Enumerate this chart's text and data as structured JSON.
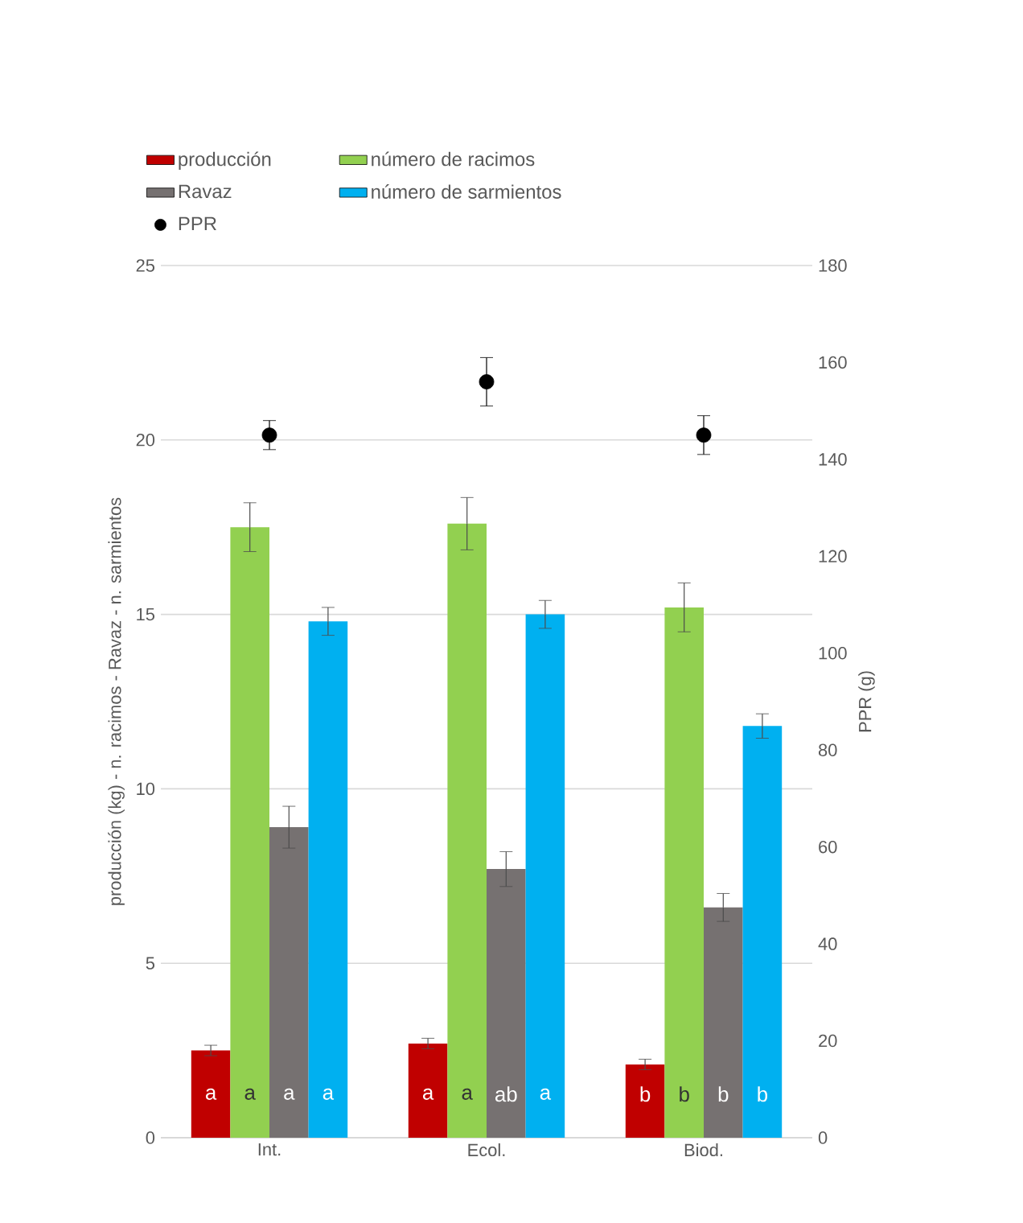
{
  "chart_data": {
    "type": "bar",
    "ylabel": "producción (kg) - n. racimos - Ravaz - n. sarmientos",
    "y2label": "PPR (g)",
    "categories": [
      "Int.",
      "Ecol.",
      "Biod."
    ],
    "series": [
      {
        "name": "producción",
        "color": "#c00000",
        "values": [
          2.5,
          2.7,
          2.1
        ],
        "errors": [
          0.15,
          0.15,
          0.15
        ],
        "value_labels": [
          "a",
          "a",
          "b"
        ]
      },
      {
        "name": "número de racimos",
        "color": "#92d050",
        "values": [
          17.5,
          17.6,
          15.2
        ],
        "errors": [
          0.7,
          0.75,
          0.7
        ],
        "value_labels": [
          "a",
          "a",
          "b"
        ]
      },
      {
        "name": "Ravaz",
        "color": "#767171",
        "values": [
          8.9,
          7.7,
          6.6
        ],
        "errors": [
          0.6,
          0.5,
          0.4
        ],
        "value_labels": [
          "a",
          "ab",
          "b"
        ]
      },
      {
        "name": "número de sarmientos",
        "color": "#00b0f0",
        "values": [
          14.8,
          15.0,
          11.8
        ],
        "errors": [
          0.4,
          0.4,
          0.35
        ],
        "value_labels": [
          "a",
          "a",
          "b"
        ]
      },
      {
        "name": "PPR",
        "type": "scatter",
        "axis": "y2",
        "color": "#000000",
        "values": [
          145,
          156,
          145
        ],
        "errors": [
          3,
          5,
          4
        ]
      }
    ],
    "ylim": [
      0,
      25
    ],
    "yticks": [
      0,
      5,
      10,
      15,
      20,
      25
    ],
    "y2lim": [
      0,
      180
    ],
    "y2ticks": [
      0,
      20,
      40,
      60,
      80,
      100,
      120,
      140,
      160,
      180
    ],
    "grid": "y",
    "legend": "top"
  }
}
